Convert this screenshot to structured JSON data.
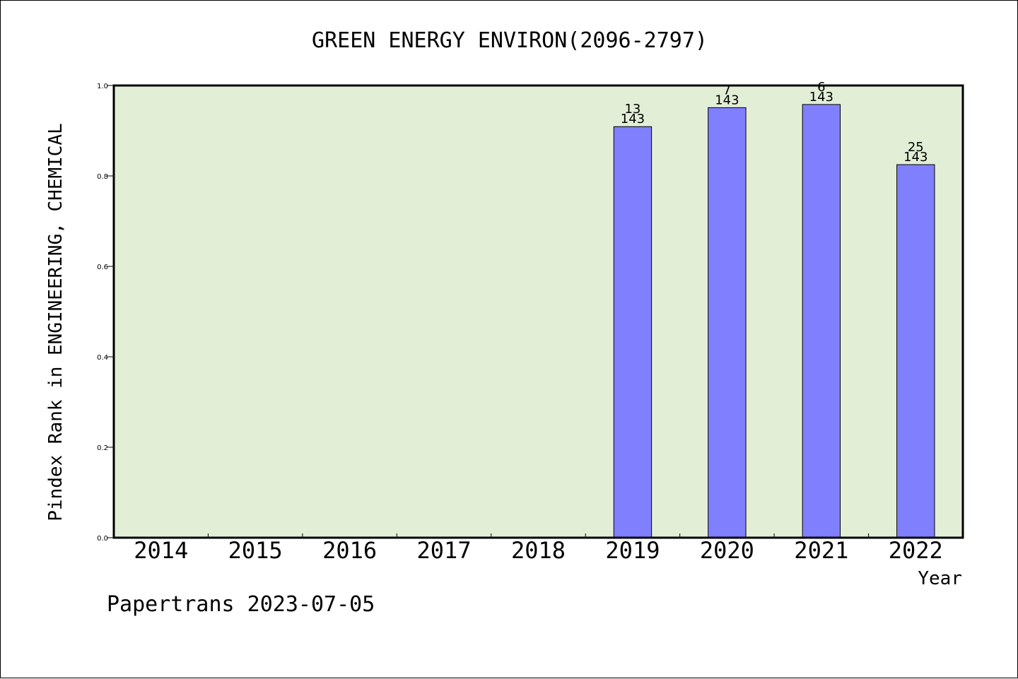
{
  "chart_data": {
    "type": "bar",
    "title": "GREEN ENERGY ENVIRON(2096-2797)",
    "xlabel": "Year",
    "ylabel": "Pindex Rank in ENGINEERING, CHEMICAL",
    "categories": [
      "2014",
      "2015",
      "2016",
      "2017",
      "2018",
      "2019",
      "2020",
      "2021",
      "2022"
    ],
    "values": [
      null,
      null,
      null,
      null,
      null,
      0.909,
      0.951,
      0.958,
      0.825
    ],
    "bar_labels": [
      null,
      null,
      null,
      null,
      null,
      {
        "rank": "13",
        "total": "143"
      },
      {
        "rank": "7",
        "total": "143"
      },
      {
        "rank": "6",
        "total": "143"
      },
      {
        "rank": "25",
        "total": "143"
      }
    ],
    "ylim": [
      0,
      1
    ],
    "yticks": [
      "0.0",
      "0.2",
      "0.4",
      "0.6",
      "0.8",
      "1.0"
    ],
    "grid": false,
    "colors": {
      "plot_background": "#e2efd6",
      "bar_fill": "#8080ff",
      "bar_stroke": "#000000"
    }
  },
  "footer": {
    "credit": "Papertrans 2023-07-05"
  }
}
